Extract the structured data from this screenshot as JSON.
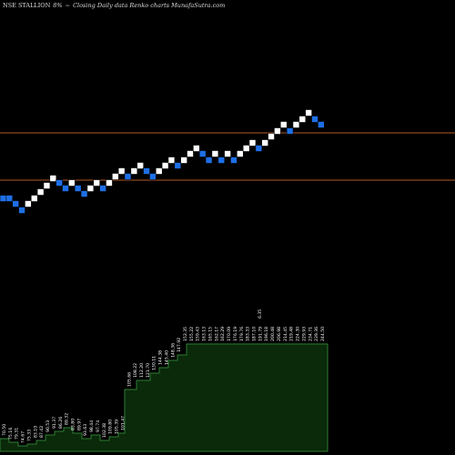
{
  "header": {
    "symbol": "NSE STALLION",
    "change": "8%",
    "arrow": "~",
    "description": "Closing Daily data Renko charts MunafaSutra.com"
  },
  "colors": {
    "background": "#000000",
    "up_brick": "#ffffff",
    "down_brick": "#1e6fe6",
    "support_line": "#b45a28",
    "volume_fill": "#0a2a0a",
    "volume_outline": "#2e7d32",
    "label_text": "#ffffff"
  },
  "chart_data": {
    "type": "renko",
    "title": "NSE STALLION 8% ~ Closing Daily data Renko charts MunafaSutra.com",
    "levels": [
      {
        "name": "upper",
        "value": 146
      },
      {
        "name": "lower",
        "value": 198
      }
    ],
    "bricks": [
      {
        "x": 0,
        "level": 218,
        "dir": "down"
      },
      {
        "x": 1,
        "level": 218,
        "dir": "down"
      },
      {
        "x": 2,
        "level": 224,
        "dir": "down"
      },
      {
        "x": 3,
        "level": 231,
        "dir": "down"
      },
      {
        "x": 4,
        "level": 224,
        "dir": "up"
      },
      {
        "x": 5,
        "level": 218,
        "dir": "up"
      },
      {
        "x": 6,
        "level": 211,
        "dir": "up"
      },
      {
        "x": 7,
        "level": 204,
        "dir": "up"
      },
      {
        "x": 8,
        "level": 196,
        "dir": "up"
      },
      {
        "x": 9,
        "level": 201,
        "dir": "down"
      },
      {
        "x": 10,
        "level": 207,
        "dir": "down"
      },
      {
        "x": 11,
        "level": 201,
        "dir": "up"
      },
      {
        "x": 12,
        "level": 207,
        "dir": "down"
      },
      {
        "x": 13,
        "level": 213,
        "dir": "down"
      },
      {
        "x": 14,
        "level": 207,
        "dir": "up"
      },
      {
        "x": 15,
        "level": 201,
        "dir": "up"
      },
      {
        "x": 16,
        "level": 207,
        "dir": "down"
      },
      {
        "x": 17,
        "level": 201,
        "dir": "up"
      },
      {
        "x": 18,
        "level": 194,
        "dir": "up"
      },
      {
        "x": 19,
        "level": 188,
        "dir": "up"
      },
      {
        "x": 20,
        "level": 194,
        "dir": "down"
      },
      {
        "x": 21,
        "level": 188,
        "dir": "up"
      },
      {
        "x": 22,
        "level": 182,
        "dir": "up"
      },
      {
        "x": 23,
        "level": 188,
        "dir": "down"
      },
      {
        "x": 24,
        "level": 194,
        "dir": "down"
      },
      {
        "x": 25,
        "level": 188,
        "dir": "up"
      },
      {
        "x": 26,
        "level": 182,
        "dir": "up"
      },
      {
        "x": 27,
        "level": 176,
        "dir": "up"
      },
      {
        "x": 28,
        "level": 182,
        "dir": "down"
      },
      {
        "x": 29,
        "level": 176,
        "dir": "up"
      },
      {
        "x": 30,
        "level": 169,
        "dir": "up"
      },
      {
        "x": 31,
        "level": 163,
        "dir": "up"
      },
      {
        "x": 32,
        "level": 169,
        "dir": "down"
      },
      {
        "x": 33,
        "level": 176,
        "dir": "down"
      },
      {
        "x": 34,
        "level": 169,
        "dir": "up"
      },
      {
        "x": 35,
        "level": 176,
        "dir": "down"
      },
      {
        "x": 36,
        "level": 169,
        "dir": "up"
      },
      {
        "x": 37,
        "level": 176,
        "dir": "down"
      },
      {
        "x": 38,
        "level": 169,
        "dir": "up"
      },
      {
        "x": 39,
        "level": 163,
        "dir": "up"
      },
      {
        "x": 40,
        "level": 157,
        "dir": "up"
      },
      {
        "x": 41,
        "level": 163,
        "dir": "down"
      },
      {
        "x": 42,
        "level": 157,
        "dir": "up"
      },
      {
        "x": 43,
        "level": 150,
        "dir": "up"
      },
      {
        "x": 44,
        "level": 144,
        "dir": "up"
      },
      {
        "x": 45,
        "level": 137,
        "dir": "up"
      },
      {
        "x": 46,
        "level": 144,
        "dir": "down"
      },
      {
        "x": 47,
        "level": 137,
        "dir": "up"
      },
      {
        "x": 48,
        "level": 131,
        "dir": "up"
      },
      {
        "x": 49,
        "level": 124,
        "dir": "up"
      },
      {
        "x": 50,
        "level": 131,
        "dir": "down"
      },
      {
        "x": 51,
        "level": 137,
        "dir": "down"
      }
    ],
    "volume": {
      "labels": [
        "70.50",
        "75.16",
        "79.31",
        "74.67",
        "75.33",
        "83.10",
        "87.42",
        "90.53",
        "91.37",
        "86.26",
        "89.32",
        "83.80",
        "89.97",
        "93.63",
        "98.44",
        "97.74",
        "102.38",
        "109.80",
        "105.39",
        "101.47",
        "105.66",
        "108.22",
        "112.20",
        "121.70",
        "130.11",
        "144.38",
        "145.40",
        "148.36",
        "147.92",
        "152.35",
        "155.22",
        "159.43",
        "163.13",
        "165.15",
        "162.17",
        "162.29",
        "170.09",
        "176.19",
        "179.76",
        "183.33",
        "187.10",
        "191.79",
        "196.18",
        "200.48",
        "206.98",
        "214.45",
        "219.48",
        "224.30",
        "229.93",
        "234.71",
        "239.36",
        "244.50"
      ],
      "extra_label": "6.35"
    }
  }
}
